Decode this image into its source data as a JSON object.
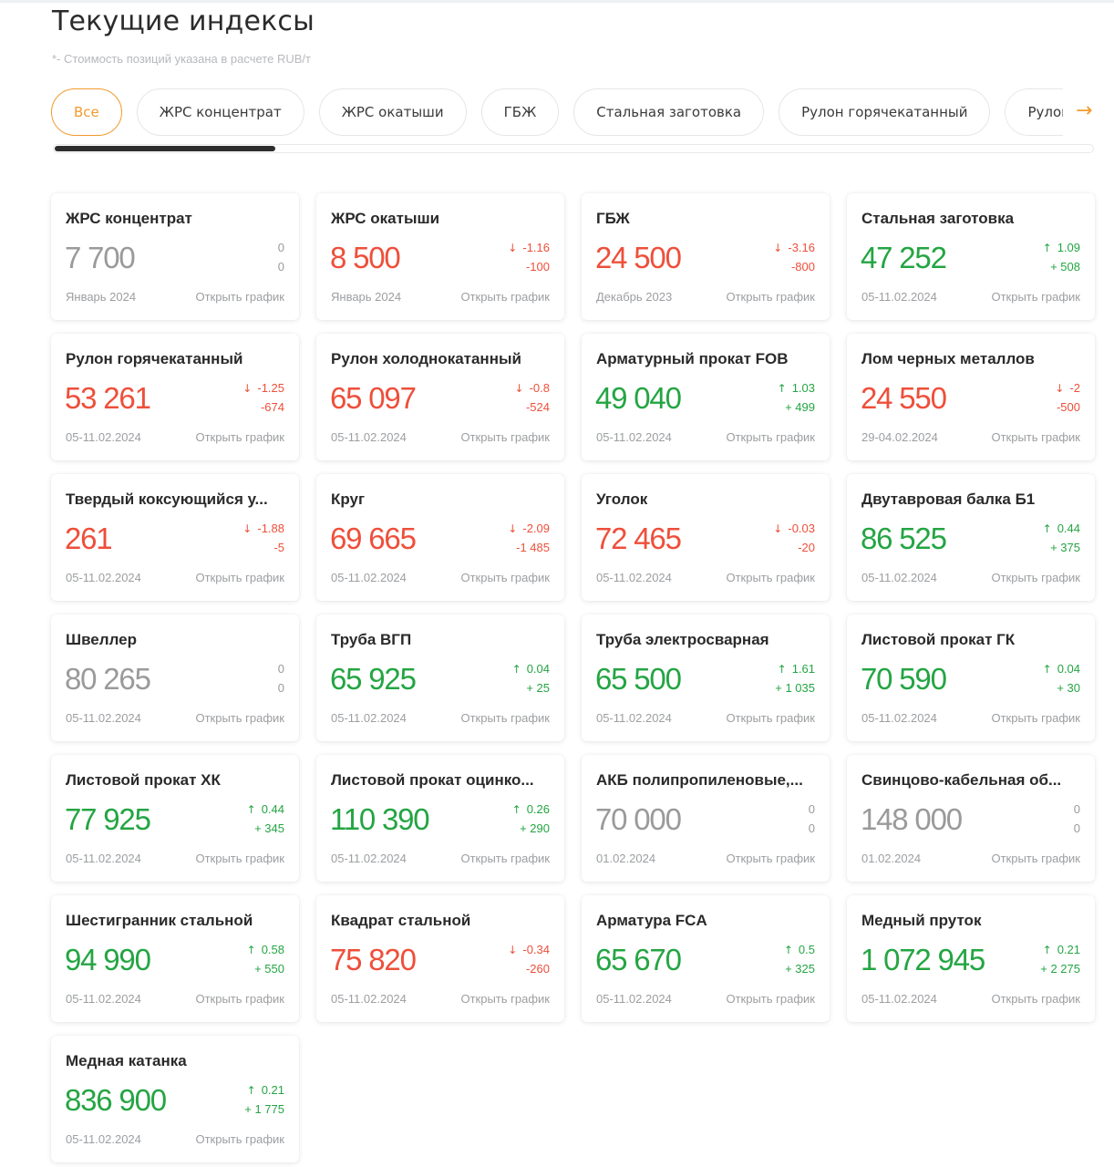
{
  "page": {
    "title": "Текущие индексы",
    "note": "*- Стоимость позиций указана в расчете RUB/т"
  },
  "filters": [
    {
      "label": "Все",
      "active": true
    },
    {
      "label": "ЖРС концентрат",
      "active": false
    },
    {
      "label": "ЖРС окатыши",
      "active": false
    },
    {
      "label": "ГБЖ",
      "active": false
    },
    {
      "label": "Стальная заготовка",
      "active": false
    },
    {
      "label": "Рулон горячекатанный",
      "active": false
    },
    {
      "label": "Рулон холоднокатанный",
      "active": false
    }
  ],
  "open_chart_label": "Открыть график",
  "colors": {
    "accent": "#f29a2e",
    "down": "#ee4f3a",
    "up": "#24a543",
    "flat": "#9a9a9a"
  },
  "cards": [
    {
      "title": "ЖРС концентрат",
      "value": "7 700",
      "pct": "0",
      "abs": "0",
      "date": "Январь 2024",
      "trend": "flat"
    },
    {
      "title": "ЖРС окатыши",
      "value": "8 500",
      "pct": "-1.16",
      "abs": "-100",
      "date": "Январь 2024",
      "trend": "down"
    },
    {
      "title": "ГБЖ",
      "value": "24 500",
      "pct": "-3.16",
      "abs": "-800",
      "date": "Декабрь 2023",
      "trend": "down"
    },
    {
      "title": "Стальная заготовка",
      "value": "47 252",
      "pct": "1.09",
      "abs": "+ 508",
      "date": "05-11.02.2024",
      "trend": "up"
    },
    {
      "title": "Рулон горячекатанный",
      "value": "53 261",
      "pct": "-1.25",
      "abs": "-674",
      "date": "05-11.02.2024",
      "trend": "down"
    },
    {
      "title": "Рулон холоднокатанный",
      "value": "65 097",
      "pct": "-0.8",
      "abs": "-524",
      "date": "05-11.02.2024",
      "trend": "down"
    },
    {
      "title": "Арматурный прокат FOB",
      "value": "49 040",
      "pct": "1.03",
      "abs": "+ 499",
      "date": "05-11.02.2024",
      "trend": "up"
    },
    {
      "title": "Лом черных металлов",
      "value": "24 550",
      "pct": "-2",
      "abs": "-500",
      "date": "29-04.02.2024",
      "trend": "down"
    },
    {
      "title": "Твердый коксующийся у...",
      "value": "261",
      "pct": "-1.88",
      "abs": "-5",
      "date": "05-11.02.2024",
      "trend": "down"
    },
    {
      "title": "Круг",
      "value": "69 665",
      "pct": "-2.09",
      "abs": "-1 485",
      "date": "05-11.02.2024",
      "trend": "down"
    },
    {
      "title": "Уголок",
      "value": "72 465",
      "pct": "-0.03",
      "abs": "-20",
      "date": "05-11.02.2024",
      "trend": "down"
    },
    {
      "title": "Двутавровая балка Б1",
      "value": "86 525",
      "pct": "0.44",
      "abs": "+ 375",
      "date": "05-11.02.2024",
      "trend": "up"
    },
    {
      "title": "Швеллер",
      "value": "80 265",
      "pct": "0",
      "abs": "0",
      "date": "05-11.02.2024",
      "trend": "flat"
    },
    {
      "title": "Труба ВГП",
      "value": "65 925",
      "pct": "0.04",
      "abs": "+ 25",
      "date": "05-11.02.2024",
      "trend": "up"
    },
    {
      "title": "Труба электросварная",
      "value": "65 500",
      "pct": "1.61",
      "abs": "+ 1 035",
      "date": "05-11.02.2024",
      "trend": "up"
    },
    {
      "title": "Листовой прокат ГК",
      "value": "70 590",
      "pct": "0.04",
      "abs": "+ 30",
      "date": "05-11.02.2024",
      "trend": "up"
    },
    {
      "title": "Листовой прокат ХК",
      "value": "77 925",
      "pct": "0.44",
      "abs": "+ 345",
      "date": "05-11.02.2024",
      "trend": "up"
    },
    {
      "title": "Листовой прокат оцинко...",
      "value": "110 390",
      "pct": "0.26",
      "abs": "+ 290",
      "date": "05-11.02.2024",
      "trend": "up"
    },
    {
      "title": "АКБ полипропиленовые,...",
      "value": "70 000",
      "pct": "0",
      "abs": "0",
      "date": "01.02.2024",
      "trend": "flat"
    },
    {
      "title": "Свинцово-кабельная об...",
      "value": "148 000",
      "pct": "0",
      "abs": "0",
      "date": "01.02.2024",
      "trend": "flat"
    },
    {
      "title": "Шестигранник стальной",
      "value": "94 990",
      "pct": "0.58",
      "abs": "+ 550",
      "date": "05-11.02.2024",
      "trend": "up"
    },
    {
      "title": "Квадрат стальной",
      "value": "75 820",
      "pct": "-0.34",
      "abs": "-260",
      "date": "05-11.02.2024",
      "trend": "down"
    },
    {
      "title": "Арматура FCA",
      "value": "65 670",
      "pct": "0.5",
      "abs": "+ 325",
      "date": "05-11.02.2024",
      "trend": "up"
    },
    {
      "title": "Медный пруток",
      "value": "1 072 945",
      "pct": "0.21",
      "abs": "+ 2 275",
      "date": "05-11.02.2024",
      "trend": "up"
    },
    {
      "title": "Медная катанка",
      "value": "836 900",
      "pct": "0.21",
      "abs": "+ 1 775",
      "date": "05-11.02.2024",
      "trend": "up"
    }
  ]
}
